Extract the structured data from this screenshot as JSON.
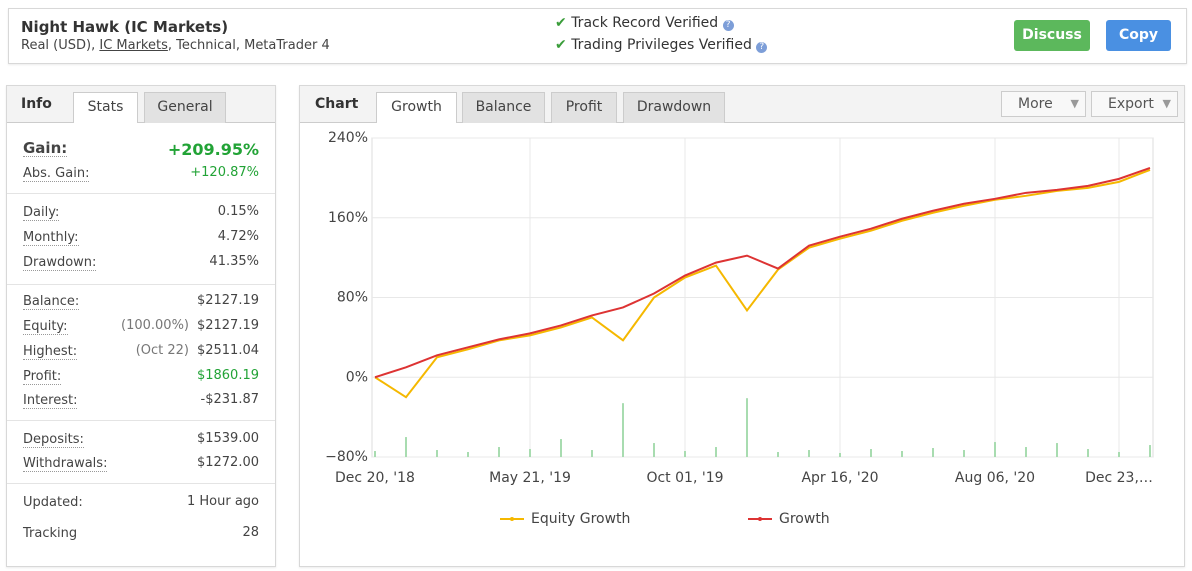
{
  "header": {
    "title": "Night Hawk (IC Markets)",
    "subtitle": [
      "Real (USD),",
      "IC Markets",
      ", Technical, MetaTrader 4"
    ],
    "verified": [
      "Track Record Verified",
      "Trading Privileges Verified"
    ],
    "buttons": [
      "Discuss",
      "Copy"
    ]
  },
  "info_panel": {
    "tabs": [
      "Info",
      "Stats",
      "General"
    ],
    "groups": [
      [
        {
          "label": "Gain:",
          "value": "+209.95%"
        },
        {
          "label": "Abs. Gain:",
          "value": "+120.87%"
        }
      ],
      [
        {
          "label": "Daily:",
          "value": "0.15%"
        },
        {
          "label": "Monthly:",
          "value": "4.72%"
        },
        {
          "label": "Drawdown:",
          "value": "41.35%"
        }
      ],
      [
        {
          "label": "Balance:",
          "value": "$2127.19"
        },
        {
          "label": "Equity:",
          "note": "(100.00%)",
          "value": "$2127.19"
        },
        {
          "label": "Highest:",
          "note": "(Oct 22)",
          "value": "$2511.04"
        },
        {
          "label": "Profit:",
          "value": "$1860.19"
        },
        {
          "label": "Interest:",
          "value": "-$231.87"
        }
      ],
      [
        {
          "label": "Deposits:",
          "value": "$1539.00"
        },
        {
          "label": "Withdrawals:",
          "value": "$1272.00"
        }
      ],
      [
        {
          "label": "Updated:",
          "value": "1 Hour ago"
        },
        {
          "label": "Tracking",
          "value": "28"
        }
      ]
    ]
  },
  "chart_panel": {
    "title": "Chart",
    "tabs": [
      "Growth",
      "Balance",
      "Profit",
      "Drawdown"
    ],
    "menus": [
      "More",
      "Export"
    ]
  },
  "chart_data": {
    "type": "line",
    "categories": [
      "Dec 20, '18",
      null,
      null,
      null,
      null,
      "May 21, '19",
      null,
      null,
      null,
      null,
      "Oct 01, '19",
      null,
      null,
      null,
      null,
      "Apr 16, '20",
      null,
      null,
      null,
      null,
      "Aug 06, '20",
      null,
      null,
      null,
      "Dec 23,…",
      null
    ],
    "series": [
      {
        "name": "Equity Growth",
        "color": "#f5b800",
        "values": [
          0,
          -20,
          20,
          28,
          37,
          42,
          50,
          60,
          37,
          80,
          100,
          112,
          67,
          108,
          130,
          139,
          147,
          157,
          165,
          172,
          178,
          182,
          187,
          190,
          196,
          208
        ]
      },
      {
        "name": "Growth",
        "color": "#dd3333",
        "values": [
          0,
          10,
          22,
          30,
          38,
          44,
          52,
          62,
          70,
          84,
          102,
          115,
          122,
          109,
          132,
          141,
          149,
          159,
          167,
          174,
          179,
          185,
          188,
          192,
          199,
          209.95
        ]
      }
    ],
    "bars": {
      "color": "#a8dcb0",
      "values": [
        -74,
        -60,
        -73,
        -75,
        -70,
        -72,
        -62,
        -73,
        -26,
        -66,
        -74,
        -70,
        -21,
        -75,
        -73,
        -76,
        -72,
        -74,
        -71,
        -73,
        -65,
        -70,
        -66,
        -72,
        -75,
        -68
      ]
    },
    "ylim": [
      -80,
      240
    ],
    "yticks": [
      {
        "value": 240,
        "label": "240%"
      },
      {
        "value": 160,
        "label": "160%"
      },
      {
        "value": 80,
        "label": "80%"
      },
      {
        "value": 0,
        "label": "0%"
      },
      {
        "value": -80,
        "label": "−80%"
      }
    ],
    "grid": true
  }
}
